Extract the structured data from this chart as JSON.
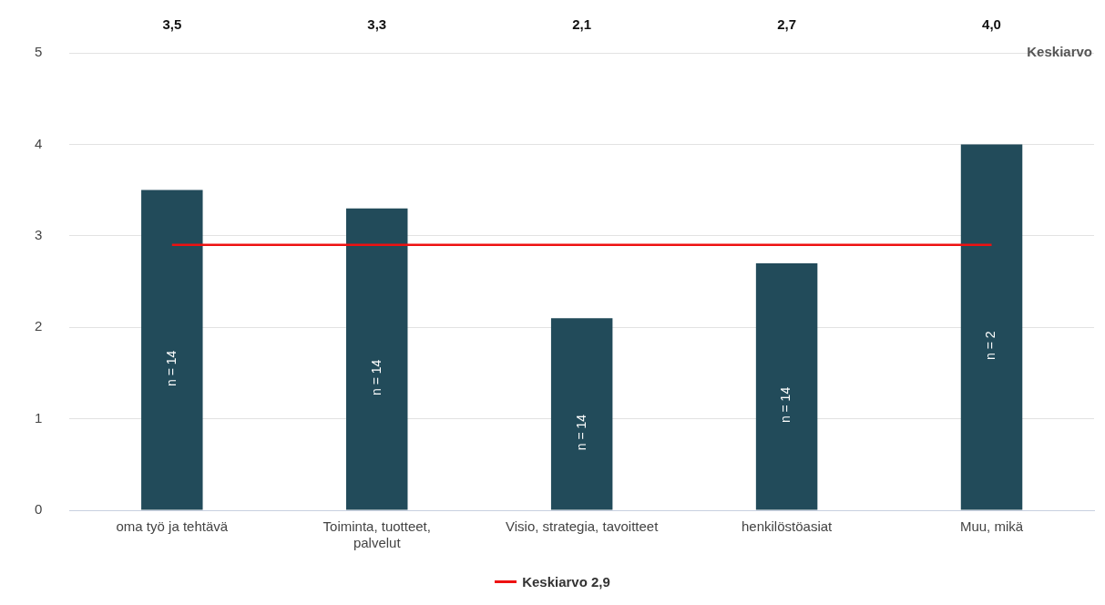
{
  "chart_data": {
    "type": "bar",
    "categories": [
      "oma työ ja tehtävä",
      "Toiminta, tuotteet,\npalvelut",
      "Visio, strategia, tavoitteet",
      "henkilöstöasiat",
      "Muu, mikä"
    ],
    "values": [
      3.5,
      3.3,
      2.1,
      2.7,
      4.0
    ],
    "value_labels": [
      "3,5",
      "3,3",
      "2,1",
      "2,7",
      "4,0"
    ],
    "color": "#224b5a",
    "ylim": [
      0,
      5
    ],
    "yticks": [
      0,
      1,
      2,
      3,
      4,
      5
    ],
    "grid": "y",
    "legend": "bottom",
    "ref_lines": [
      {
        "axis": "y",
        "value": 2.9,
        "label": "Keskiarvo 2,9",
        "color": "#ee1111",
        "line_style": "solid"
      }
    ],
    "annotations": [
      "Keskiarvo",
      "n = 14",
      "n = 14",
      "n = 14",
      "n = 14",
      "n = 2"
    ]
  }
}
